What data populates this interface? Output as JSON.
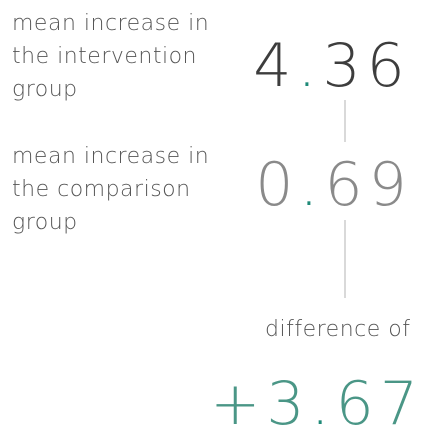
{
  "rows": [
    {
      "label_lines": [
        "mean increase in",
        "the intervention",
        "group"
      ],
      "value": "4.36"
    },
    {
      "label_lines": [
        "mean increase in",
        "the comparison",
        "group"
      ],
      "value": "0.69"
    }
  ],
  "difference": {
    "label": "difference of",
    "value": "+3.67"
  }
}
